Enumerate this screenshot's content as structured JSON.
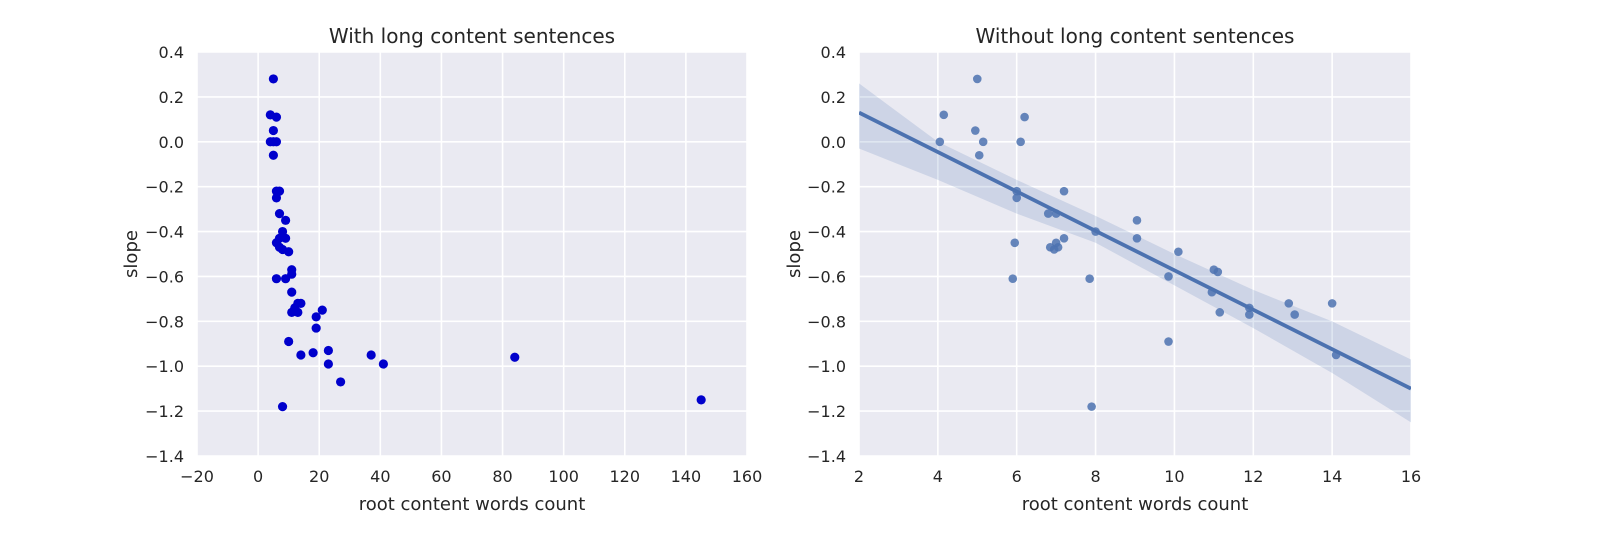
{
  "chart_data": [
    {
      "type": "scatter",
      "title": "With long content sentences",
      "xlabel": "root content words count",
      "ylabel": "slope",
      "xlim": [
        -20,
        160
      ],
      "ylim": [
        -1.4,
        0.4
      ],
      "xticks": [
        -20,
        0,
        20,
        40,
        60,
        80,
        100,
        120,
        140,
        160
      ],
      "xtick_labels": [
        "−20",
        "0",
        "20",
        "40",
        "60",
        "80",
        "100",
        "120",
        "140",
        "160"
      ],
      "yticks": [
        -1.4,
        -1.2,
        -1.0,
        -0.8,
        -0.6,
        -0.4,
        -0.2,
        0.0,
        0.2,
        0.4
      ],
      "ytick_labels": [
        "−1.4",
        "−1.2",
        "−1.0",
        "−0.8",
        "−0.6",
        "−0.4",
        "−0.2",
        "0.0",
        "0.2",
        "0.4"
      ],
      "grid": true,
      "point_color": "#0000CC",
      "points": [
        [
          5,
          0.28
        ],
        [
          4,
          0.12
        ],
        [
          6,
          0.11
        ],
        [
          5,
          0.05
        ],
        [
          4,
          0.0
        ],
        [
          5,
          0.0
        ],
        [
          6,
          0.0
        ],
        [
          5,
          -0.06
        ],
        [
          6,
          -0.22
        ],
        [
          7,
          -0.22
        ],
        [
          6,
          -0.25
        ],
        [
          7,
          -0.32
        ],
        [
          9,
          -0.35
        ],
        [
          8,
          -0.4
        ],
        [
          7,
          -0.43
        ],
        [
          9,
          -0.43
        ],
        [
          6,
          -0.45
        ],
        [
          7,
          -0.47
        ],
        [
          8,
          -0.48
        ],
        [
          10,
          -0.49
        ],
        [
          11,
          -0.57
        ],
        [
          11,
          -0.59
        ],
        [
          6,
          -0.61
        ],
        [
          9,
          -0.61
        ],
        [
          11,
          -0.67
        ],
        [
          13,
          -0.72
        ],
        [
          14,
          -0.72
        ],
        [
          12,
          -0.74
        ],
        [
          11,
          -0.76
        ],
        [
          13,
          -0.76
        ],
        [
          21,
          -0.75
        ],
        [
          19,
          -0.78
        ],
        [
          19,
          -0.83
        ],
        [
          10,
          -0.89
        ],
        [
          18,
          -0.94
        ],
        [
          14,
          -0.95
        ],
        [
          23,
          -0.93
        ],
        [
          37,
          -0.95
        ],
        [
          23,
          -0.99
        ],
        [
          41,
          -0.99
        ],
        [
          84,
          -0.96
        ],
        [
          27,
          -1.07
        ],
        [
          8,
          -1.18
        ],
        [
          145,
          -1.15
        ]
      ]
    },
    {
      "type": "scatter",
      "title": "Without long content sentences",
      "xlabel": "root content words count",
      "ylabel": "slope",
      "xlim": [
        2,
        16
      ],
      "ylim": [
        -1.4,
        0.4
      ],
      "xticks": [
        2,
        4,
        6,
        8,
        10,
        12,
        14,
        16
      ],
      "xtick_labels": [
        "2",
        "4",
        "6",
        "8",
        "10",
        "12",
        "14",
        "16"
      ],
      "yticks": [
        -1.4,
        -1.2,
        -1.0,
        -0.8,
        -0.6,
        -0.4,
        -0.2,
        0.0,
        0.2,
        0.4
      ],
      "ytick_labels": [
        "−1.4",
        "−1.2",
        "−1.0",
        "−0.8",
        "−0.6",
        "−0.4",
        "−0.2",
        "0.0",
        "0.2",
        "0.4"
      ],
      "grid": true,
      "point_color": "#4C72B0",
      "points": [
        [
          5.0,
          0.28
        ],
        [
          4.15,
          0.12
        ],
        [
          6.2,
          0.11
        ],
        [
          4.95,
          0.05
        ],
        [
          4.05,
          0.0
        ],
        [
          5.15,
          0.0
        ],
        [
          6.1,
          0.0
        ],
        [
          5.05,
          -0.06
        ],
        [
          6.0,
          -0.22
        ],
        [
          7.2,
          -0.22
        ],
        [
          6.0,
          -0.25
        ],
        [
          6.8,
          -0.32
        ],
        [
          7.0,
          -0.32
        ],
        [
          9.05,
          -0.35
        ],
        [
          8.0,
          -0.4
        ],
        [
          9.05,
          -0.43
        ],
        [
          7.2,
          -0.43
        ],
        [
          5.95,
          -0.45
        ],
        [
          7.0,
          -0.45
        ],
        [
          6.85,
          -0.47
        ],
        [
          7.05,
          -0.47
        ],
        [
          6.95,
          -0.48
        ],
        [
          10.1,
          -0.49
        ],
        [
          11.0,
          -0.57
        ],
        [
          11.1,
          -0.58
        ],
        [
          9.85,
          -0.6
        ],
        [
          5.9,
          -0.61
        ],
        [
          7.85,
          -0.61
        ],
        [
          10.95,
          -0.67
        ],
        [
          12.9,
          -0.72
        ],
        [
          14.0,
          -0.72
        ],
        [
          11.9,
          -0.74
        ],
        [
          11.15,
          -0.76
        ],
        [
          11.9,
          -0.77
        ],
        [
          13.05,
          -0.77
        ],
        [
          9.85,
          -0.89
        ],
        [
          14.1,
          -0.95
        ],
        [
          7.9,
          -1.18
        ]
      ],
      "regression": {
        "color": "#4C72B0",
        "line": [
          [
            2,
            0.13
          ],
          [
            16,
            -1.1
          ]
        ],
        "ci_upper": [
          [
            2,
            0.26
          ],
          [
            4,
            0.0
          ],
          [
            6,
            -0.17
          ],
          [
            8,
            -0.33
          ],
          [
            10,
            -0.5
          ],
          [
            12,
            -0.66
          ],
          [
            14,
            -0.8
          ],
          [
            16,
            -0.97
          ]
        ],
        "ci_lower": [
          [
            2,
            -0.03
          ],
          [
            4,
            -0.17
          ],
          [
            6,
            -0.32
          ],
          [
            8,
            -0.45
          ],
          [
            10,
            -0.64
          ],
          [
            12,
            -0.83
          ],
          [
            14,
            -1.03
          ],
          [
            16,
            -1.25
          ]
        ]
      }
    }
  ]
}
